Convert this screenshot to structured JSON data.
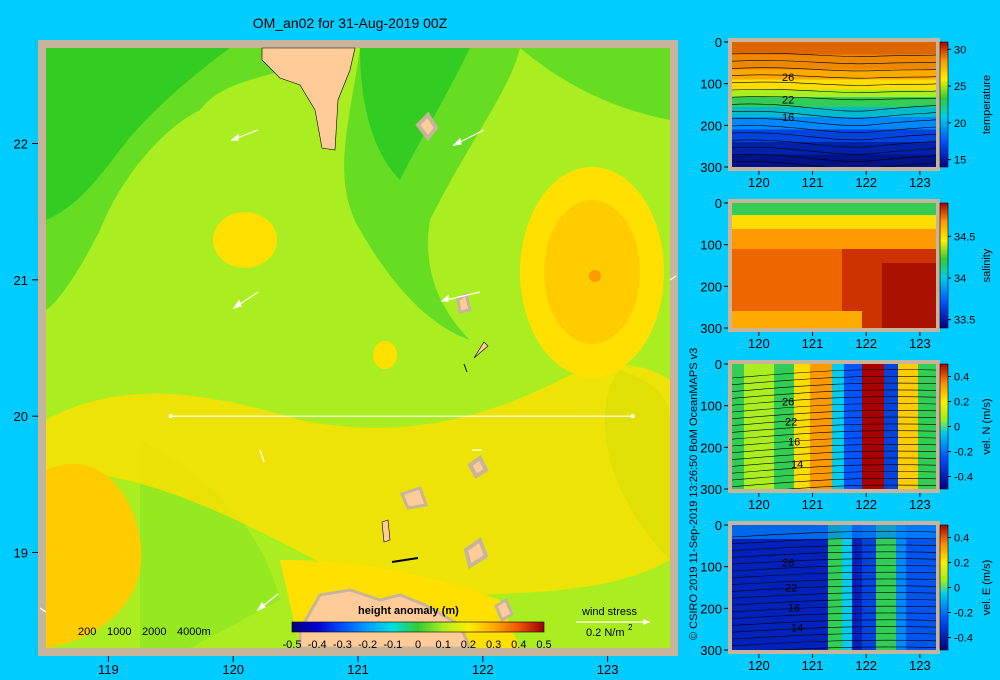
{
  "title": "OM_an02 for 31-Aug-2019 00Z",
  "copyright": "© CSIRO 2019  11-Sep-2019 13:26:50 BoM OceanMAPS v3",
  "colors": {
    "background": "#00ccff",
    "frame": "#c8b49a",
    "land": "#ffcc99",
    "map_base": "#aaee22"
  },
  "chart_data": [
    {
      "type": "heatmap",
      "title": "height anomaly (m)",
      "xlim": [
        118.5,
        123.5
      ],
      "ylim": [
        18.3,
        22.7
      ],
      "x_ticks": [
        119,
        120,
        121,
        122,
        123
      ],
      "y_ticks": [
        19,
        20,
        21,
        22
      ],
      "colorbar": {
        "label": "height anomaly (m)",
        "min": -0.5,
        "max": 0.5,
        "ticks": [
          "-0.5",
          "-0.4",
          "-0.3",
          "-0.2",
          "-0.1",
          "0",
          "0.1",
          "0.2",
          "0.3",
          "0.4",
          "0.5"
        ],
        "colors": [
          "#000080",
          "#0000cd",
          "#0050ff",
          "#00a0ff",
          "#00e0e0",
          "#33cc33",
          "#aaee22",
          "#ffee00",
          "#ffaa00",
          "#ee5500",
          "#990000"
        ]
      },
      "depth_legend": [
        "200",
        "1000",
        "2000",
        "4000m"
      ],
      "wind_legend": {
        "label": "wind stress",
        "scale": "0.2 N/m",
        "exponent": "2"
      },
      "section_line": {
        "lat": 20,
        "lon_start": 119.5,
        "lon_end": 123.2
      }
    },
    {
      "type": "heatmap",
      "ylabel": "temperature",
      "xlim": [
        119.5,
        123.3
      ],
      "ylim": [
        300,
        0
      ],
      "x_ticks": [
        120,
        121,
        122,
        123
      ],
      "y_ticks": [
        0,
        100,
        200,
        300
      ],
      "colorbar_ticks": [
        15,
        20,
        25,
        30
      ],
      "colorbar_range": [
        14,
        31
      ],
      "contour_labels": [
        "26",
        "22",
        "16"
      ]
    },
    {
      "type": "heatmap",
      "ylabel": "salinity",
      "xlim": [
        119.5,
        123.3
      ],
      "ylim": [
        300,
        0
      ],
      "x_ticks": [
        120,
        121,
        122,
        123
      ],
      "y_ticks": [
        0,
        100,
        200,
        300
      ],
      "colorbar_ticks": [
        33.5,
        34,
        34.5
      ],
      "colorbar_range": [
        33.4,
        34.9
      ]
    },
    {
      "type": "heatmap",
      "ylabel": "vel. N (m/s)",
      "xlim": [
        119.5,
        123.3
      ],
      "ylim": [
        300,
        0
      ],
      "x_ticks": [
        120,
        121,
        122,
        123
      ],
      "y_ticks": [
        0,
        100,
        200,
        300
      ],
      "colorbar_ticks": [
        -0.4,
        -0.2,
        0,
        0.2,
        0.4
      ],
      "colorbar_range": [
        -0.5,
        0.5
      ],
      "contour_labels": [
        "26",
        "22",
        "16",
        "14"
      ]
    },
    {
      "type": "heatmap",
      "ylabel": "vel. E (m/s)",
      "xlim": [
        119.5,
        123.3
      ],
      "ylim": [
        300,
        0
      ],
      "x_ticks": [
        120,
        121,
        122,
        123
      ],
      "y_ticks": [
        0,
        100,
        200,
        300
      ],
      "colorbar_ticks": [
        -0.4,
        -0.2,
        0,
        0.2,
        0.4
      ],
      "colorbar_range": [
        -0.5,
        0.5
      ],
      "contour_labels": [
        "26",
        "22",
        "16",
        "14"
      ]
    }
  ]
}
